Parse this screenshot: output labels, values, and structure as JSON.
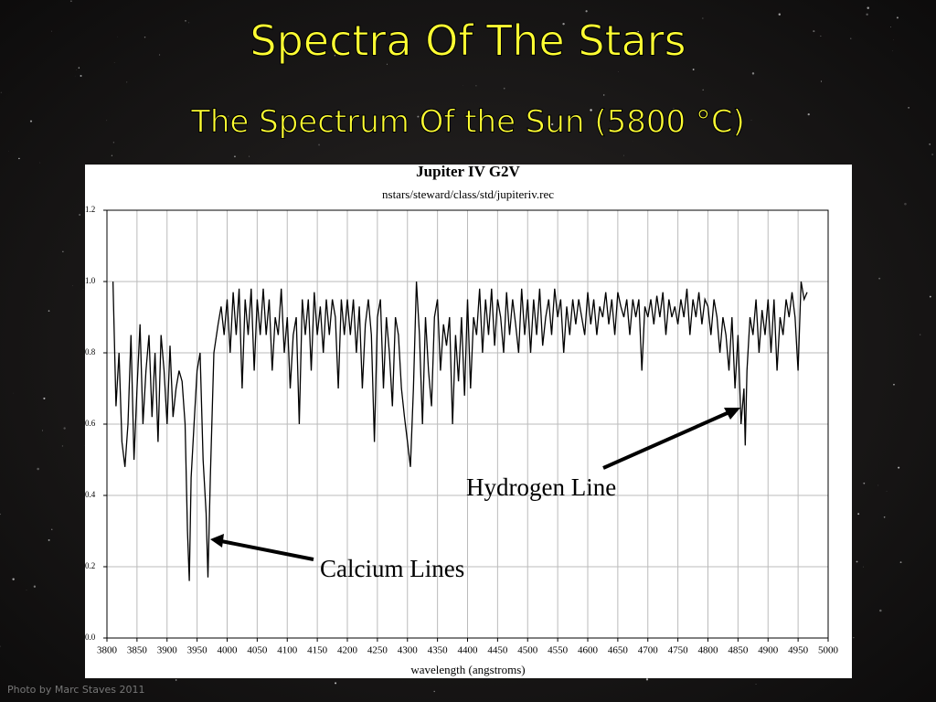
{
  "slide": {
    "title": "Spectra Of The Stars",
    "subtitle": "The Spectrum Of the Sun (5800 °C)",
    "credit": "Photo by Marc Staves 2011"
  },
  "chart_data": {
    "type": "line",
    "title": "Jupiter IV G2V",
    "subtitle": "nstars/steward/class/std/jupiteriv.rec",
    "xlabel": "wavelength (angstroms)",
    "color": "#000000",
    "grid": true,
    "xlim": [
      3800,
      5000
    ],
    "xticks": [
      3800,
      3850,
      3900,
      3950,
      4000,
      4050,
      4100,
      4150,
      4200,
      4250,
      4300,
      4350,
      4400,
      4450,
      4500,
      4550,
      4600,
      4650,
      4700,
      4750,
      4800,
      4850,
      4900,
      4950,
      5000
    ],
    "ylim": [
      0,
      1.2
    ],
    "yticks": [
      {
        "value": 0,
        "label": "0.0"
      },
      0.2,
      0.4,
      0.6,
      0.8,
      {
        "value": 1,
        "label": "1.0"
      },
      1.2
    ],
    "annotations": [
      "Hydrogen Line",
      "Calcium Lines"
    ],
    "x": [
      3810,
      3815,
      3820,
      3825,
      3830,
      3835,
      3840,
      3845,
      3850,
      3855,
      3860,
      3865,
      3870,
      3875,
      3880,
      3885,
      3890,
      3895,
      3900,
      3905,
      3910,
      3915,
      3920,
      3925,
      3930,
      3934,
      3937,
      3940,
      3945,
      3950,
      3955,
      3960,
      3965,
      3968,
      3972,
      3978,
      3985,
      3990,
      3995,
      4000,
      4005,
      4010,
      4015,
      4020,
      4025,
      4030,
      4035,
      4040,
      4045,
      4050,
      4055,
      4060,
      4065,
      4070,
      4075,
      4080,
      4085,
      4090,
      4095,
      4100,
      4105,
      4110,
      4115,
      4120,
      4125,
      4130,
      4135,
      4140,
      4145,
      4150,
      4155,
      4160,
      4165,
      4170,
      4175,
      4180,
      4185,
      4190,
      4195,
      4200,
      4205,
      4210,
      4215,
      4220,
      4225,
      4230,
      4235,
      4240,
      4245,
      4250,
      4255,
      4260,
      4265,
      4270,
      4275,
      4280,
      4285,
      4290,
      4295,
      4300,
      4305,
      4310,
      4315,
      4320,
      4325,
      4330,
      4335,
      4340,
      4345,
      4350,
      4355,
      4360,
      4365,
      4370,
      4375,
      4380,
      4385,
      4390,
      4395,
      4400,
      4405,
      4410,
      4415,
      4420,
      4425,
      4430,
      4435,
      4440,
      4445,
      4450,
      4455,
      4460,
      4465,
      4470,
      4475,
      4480,
      4485,
      4490,
      4495,
      4500,
      4505,
      4510,
      4515,
      4520,
      4525,
      4530,
      4535,
      4540,
      4545,
      4550,
      4555,
      4560,
      4565,
      4570,
      4575,
      4580,
      4585,
      4590,
      4595,
      4600,
      4605,
      4610,
      4615,
      4620,
      4625,
      4630,
      4635,
      4640,
      4645,
      4650,
      4655,
      4660,
      4665,
      4670,
      4675,
      4680,
      4685,
      4690,
      4695,
      4700,
      4705,
      4710,
      4715,
      4720,
      4725,
      4730,
      4735,
      4740,
      4745,
      4750,
      4755,
      4760,
      4765,
      4770,
      4775,
      4780,
      4785,
      4790,
      4795,
      4800,
      4805,
      4810,
      4815,
      4820,
      4825,
      4830,
      4835,
      4840,
      4845,
      4850,
      4855,
      4860,
      4862,
      4865,
      4870,
      4875,
      4880,
      4885,
      4890,
      4895,
      4900,
      4905,
      4910,
      4915,
      4920,
      4925,
      4930,
      4935,
      4940,
      4945,
      4950,
      4955,
      4960,
      4965
    ],
    "values": [
      1.0,
      0.65,
      0.8,
      0.55,
      0.48,
      0.6,
      0.85,
      0.5,
      0.7,
      0.88,
      0.6,
      0.75,
      0.85,
      0.62,
      0.8,
      0.55,
      0.85,
      0.75,
      0.6,
      0.82,
      0.62,
      0.7,
      0.75,
      0.72,
      0.6,
      0.3,
      0.16,
      0.45,
      0.6,
      0.75,
      0.8,
      0.5,
      0.35,
      0.17,
      0.45,
      0.8,
      0.88,
      0.93,
      0.85,
      0.95,
      0.8,
      0.97,
      0.85,
      0.98,
      0.7,
      0.95,
      0.85,
      0.98,
      0.75,
      0.95,
      0.85,
      0.98,
      0.85,
      0.95,
      0.75,
      0.9,
      0.85,
      0.98,
      0.8,
      0.9,
      0.7,
      0.85,
      0.9,
      0.6,
      0.95,
      0.85,
      0.95,
      0.75,
      0.97,
      0.85,
      0.93,
      0.8,
      0.95,
      0.85,
      0.95,
      0.9,
      0.7,
      0.95,
      0.85,
      0.95,
      0.85,
      0.95,
      0.8,
      0.93,
      0.7,
      0.88,
      0.95,
      0.85,
      0.55,
      0.9,
      0.95,
      0.7,
      0.9,
      0.8,
      0.65,
      0.9,
      0.85,
      0.7,
      0.62,
      0.55,
      0.48,
      0.7,
      1.0,
      0.85,
      0.6,
      0.9,
      0.75,
      0.65,
      0.9,
      0.95,
      0.75,
      0.88,
      0.82,
      0.9,
      0.6,
      0.85,
      0.72,
      0.9,
      0.68,
      0.95,
      0.7,
      0.9,
      0.85,
      0.98,
      0.8,
      0.95,
      0.85,
      0.98,
      0.82,
      0.95,
      0.9,
      0.8,
      0.97,
      0.85,
      0.95,
      0.88,
      0.8,
      0.98,
      0.85,
      0.95,
      0.8,
      0.95,
      0.85,
      0.98,
      0.82,
      0.9,
      0.95,
      0.85,
      0.98,
      0.9,
      0.95,
      0.8,
      0.93,
      0.85,
      0.95,
      0.88,
      0.95,
      0.9,
      0.85,
      0.97,
      0.88,
      0.95,
      0.85,
      0.93,
      0.9,
      0.97,
      0.88,
      0.95,
      0.85,
      0.97,
      0.93,
      0.9,
      0.95,
      0.85,
      0.95,
      0.9,
      0.95,
      0.75,
      0.93,
      0.9,
      0.95,
      0.88,
      0.96,
      0.9,
      0.97,
      0.85,
      0.95,
      0.9,
      0.93,
      0.88,
      0.95,
      0.9,
      0.98,
      0.85,
      0.95,
      0.9,
      0.97,
      0.88,
      0.95,
      0.93,
      0.85,
      0.95,
      0.9,
      0.8,
      0.9,
      0.85,
      0.75,
      0.9,
      0.7,
      0.85,
      0.6,
      0.7,
      0.54,
      0.75,
      0.9,
      0.85,
      0.95,
      0.8,
      0.92,
      0.85,
      0.95,
      0.8,
      0.95,
      0.75,
      0.9,
      0.85,
      0.95,
      0.9,
      0.97,
      0.9,
      0.75,
      1.0,
      0.95,
      0.97
    ]
  }
}
